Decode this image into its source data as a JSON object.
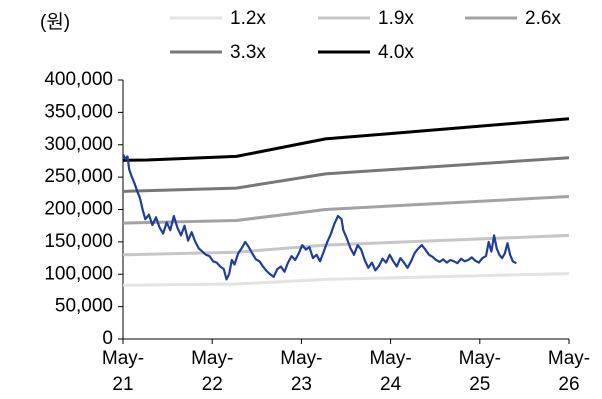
{
  "chart_data": {
    "type": "line",
    "unit_label": "(원)",
    "x_ticks": [
      {
        "top": "May-",
        "bottom": "21",
        "x": 2021.33
      },
      {
        "top": "May-",
        "bottom": "22",
        "x": 2022.33
      },
      {
        "top": "May-",
        "bottom": "23",
        "x": 2023.33
      },
      {
        "top": "May-",
        "bottom": "24",
        "x": 2024.33
      },
      {
        "top": "May-",
        "bottom": "25",
        "x": 2025.33
      },
      {
        "top": "May-",
        "bottom": "26",
        "x": 2026.33
      }
    ],
    "xlim": [
      2021.33,
      2026.33
    ],
    "ylim": [
      0,
      400000
    ],
    "y_ticks": [
      0,
      50000,
      100000,
      150000,
      200000,
      250000,
      300000,
      350000,
      400000
    ],
    "y_tick_labels": [
      "0",
      "50,000",
      "100,000",
      "150,000",
      "200,000",
      "250,000",
      "300,000",
      "350,000",
      "400,000"
    ],
    "legend_position": "top",
    "series": [
      {
        "name": "1.2x",
        "color": "#e3e3e3",
        "points": [
          [
            2021.33,
            83000
          ],
          [
            2022.6,
            85000
          ],
          [
            2023.6,
            92000
          ],
          [
            2026.33,
            101000
          ]
        ]
      },
      {
        "name": "1.9x",
        "color": "#c6c6c6",
        "points": [
          [
            2021.33,
            130000
          ],
          [
            2022.6,
            134000
          ],
          [
            2023.6,
            145000
          ],
          [
            2026.33,
            160000
          ]
        ]
      },
      {
        "name": "2.6x",
        "color": "#a3a3a3",
        "points": [
          [
            2021.33,
            179000
          ],
          [
            2022.6,
            183000
          ],
          [
            2023.6,
            200000
          ],
          [
            2026.33,
            220000
          ]
        ]
      },
      {
        "name": "3.3x",
        "color": "#777777",
        "points": [
          [
            2021.33,
            228000
          ],
          [
            2022.6,
            233000
          ],
          [
            2023.6,
            255000
          ],
          [
            2026.33,
            280000
          ]
        ]
      },
      {
        "name": "4.0x",
        "color": "#000000",
        "points": [
          [
            2021.33,
            276000
          ],
          [
            2021.6,
            276500
          ],
          [
            2022.6,
            282000
          ],
          [
            2023.6,
            309000
          ],
          [
            2026.33,
            340000
          ]
        ]
      },
      {
        "name": "",
        "color": "#1f3d99",
        "points": [
          [
            2021.33,
            285000
          ],
          [
            2021.36,
            278000
          ],
          [
            2021.38,
            282000
          ],
          [
            2021.4,
            262000
          ],
          [
            2021.43,
            250000
          ],
          [
            2021.46,
            240000
          ],
          [
            2021.49,
            228000
          ],
          [
            2021.52,
            218000
          ],
          [
            2021.55,
            200000
          ],
          [
            2021.58,
            185000
          ],
          [
            2021.62,
            192000
          ],
          [
            2021.66,
            176000
          ],
          [
            2021.7,
            188000
          ],
          [
            2021.74,
            172000
          ],
          [
            2021.78,
            163000
          ],
          [
            2021.82,
            180000
          ],
          [
            2021.86,
            168000
          ],
          [
            2021.9,
            190000
          ],
          [
            2021.94,
            172000
          ],
          [
            2021.98,
            160000
          ],
          [
            2022.02,
            175000
          ],
          [
            2022.06,
            152000
          ],
          [
            2022.1,
            165000
          ],
          [
            2022.14,
            150000
          ],
          [
            2022.18,
            140000
          ],
          [
            2022.22,
            135000
          ],
          [
            2022.26,
            130000
          ],
          [
            2022.3,
            128000
          ],
          [
            2022.34,
            120000
          ],
          [
            2022.38,
            118000
          ],
          [
            2022.42,
            112000
          ],
          [
            2022.46,
            108000
          ],
          [
            2022.49,
            92000
          ],
          [
            2022.52,
            100000
          ],
          [
            2022.55,
            122000
          ],
          [
            2022.58,
            115000
          ],
          [
            2022.62,
            132000
          ],
          [
            2022.66,
            140000
          ],
          [
            2022.7,
            150000
          ],
          [
            2022.74,
            142000
          ],
          [
            2022.78,
            132000
          ],
          [
            2022.82,
            123000
          ],
          [
            2022.86,
            120000
          ],
          [
            2022.9,
            112000
          ],
          [
            2022.94,
            105000
          ],
          [
            2022.98,
            100000
          ],
          [
            2023.02,
            96000
          ],
          [
            2023.06,
            108000
          ],
          [
            2023.1,
            112000
          ],
          [
            2023.14,
            104000
          ],
          [
            2023.18,
            118000
          ],
          [
            2023.22,
            128000
          ],
          [
            2023.26,
            122000
          ],
          [
            2023.3,
            132000
          ],
          [
            2023.34,
            145000
          ],
          [
            2023.38,
            138000
          ],
          [
            2023.42,
            142000
          ],
          [
            2023.46,
            125000
          ],
          [
            2023.5,
            130000
          ],
          [
            2023.54,
            120000
          ],
          [
            2023.58,
            135000
          ],
          [
            2023.62,
            150000
          ],
          [
            2023.66,
            162000
          ],
          [
            2023.7,
            178000
          ],
          [
            2023.74,
            190000
          ],
          [
            2023.78,
            185000
          ],
          [
            2023.8,
            168000
          ],
          [
            2023.84,
            155000
          ],
          [
            2023.88,
            140000
          ],
          [
            2023.92,
            130000
          ],
          [
            2023.96,
            145000
          ],
          [
            2024.0,
            138000
          ],
          [
            2024.04,
            122000
          ],
          [
            2024.08,
            110000
          ],
          [
            2024.12,
            118000
          ],
          [
            2024.16,
            106000
          ],
          [
            2024.2,
            113000
          ],
          [
            2024.24,
            124000
          ],
          [
            2024.28,
            118000
          ],
          [
            2024.32,
            130000
          ],
          [
            2024.36,
            120000
          ],
          [
            2024.4,
            112000
          ],
          [
            2024.44,
            125000
          ],
          [
            2024.48,
            118000
          ],
          [
            2024.52,
            110000
          ],
          [
            2024.56,
            120000
          ],
          [
            2024.6,
            133000
          ],
          [
            2024.64,
            140000
          ],
          [
            2024.68,
            145000
          ],
          [
            2024.72,
            138000
          ],
          [
            2024.76,
            130000
          ],
          [
            2024.8,
            127000
          ],
          [
            2024.84,
            122000
          ],
          [
            2024.88,
            119000
          ],
          [
            2024.92,
            123000
          ],
          [
            2024.96,
            118000
          ],
          [
            2025.0,
            122000
          ],
          [
            2025.04,
            120000
          ],
          [
            2025.08,
            117000
          ],
          [
            2025.12,
            124000
          ],
          [
            2025.16,
            120000
          ],
          [
            2025.2,
            122000
          ],
          [
            2025.24,
            126000
          ],
          [
            2025.28,
            121000
          ],
          [
            2025.32,
            118000
          ],
          [
            2025.36,
            125000
          ],
          [
            2025.4,
            128000
          ],
          [
            2025.43,
            150000
          ],
          [
            2025.46,
            135000
          ],
          [
            2025.49,
            160000
          ],
          [
            2025.52,
            140000
          ],
          [
            2025.55,
            130000
          ],
          [
            2025.58,
            125000
          ],
          [
            2025.61,
            132000
          ],
          [
            2025.64,
            148000
          ],
          [
            2025.67,
            130000
          ],
          [
            2025.7,
            120000
          ],
          [
            2025.74,
            117000
          ]
        ]
      }
    ]
  }
}
